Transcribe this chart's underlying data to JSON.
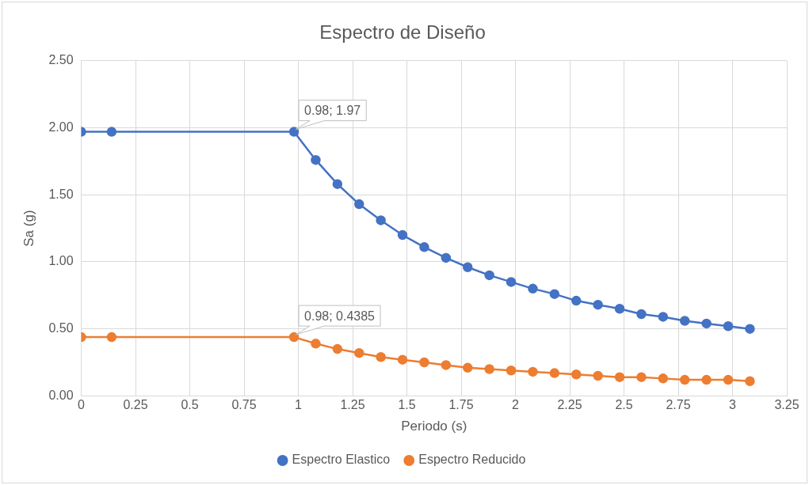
{
  "chart_data": {
    "type": "line",
    "title": "Espectro de Diseño",
    "xlabel": "Periodo (s)",
    "ylabel": "Sa (g)",
    "x": [
      0,
      0.14,
      0.98,
      1.08,
      1.18,
      1.28,
      1.38,
      1.48,
      1.58,
      1.68,
      1.78,
      1.88,
      1.98,
      2.08,
      2.18,
      2.28,
      2.38,
      2.48,
      2.58,
      2.68,
      2.78,
      2.88,
      2.98,
      3.08
    ],
    "series": [
      {
        "name": "Espectro Elastico",
        "color": "#4472c4",
        "values": [
          1.97,
          1.97,
          1.97,
          1.76,
          1.58,
          1.43,
          1.31,
          1.2,
          1.11,
          1.03,
          0.96,
          0.9,
          0.85,
          0.8,
          0.76,
          0.71,
          0.68,
          0.65,
          0.61,
          0.59,
          0.56,
          0.54,
          0.52,
          0.5
        ]
      },
      {
        "name": "Espectro Reducido",
        "color": "#ed7d31",
        "values": [
          0.4385,
          0.4385,
          0.4385,
          0.39,
          0.35,
          0.32,
          0.29,
          0.27,
          0.25,
          0.23,
          0.21,
          0.2,
          0.19,
          0.18,
          0.17,
          0.16,
          0.15,
          0.14,
          0.14,
          0.13,
          0.12,
          0.12,
          0.12,
          0.11
        ]
      }
    ],
    "xlim": [
      0,
      3.25
    ],
    "xticks": [
      0,
      0.25,
      0.5,
      0.75,
      1,
      1.25,
      1.5,
      1.75,
      2,
      2.25,
      2.5,
      2.75,
      3,
      3.25
    ],
    "ylim": [
      0,
      2.5
    ],
    "yticks": [
      {
        "value": 0,
        "label": "0.00"
      },
      {
        "value": 0.5,
        "label": "0.50"
      },
      {
        "value": 1,
        "label": "1.00"
      },
      {
        "value": 1.5,
        "label": "1.50"
      },
      {
        "value": 2,
        "label": "2.00"
      },
      {
        "value": 2.5,
        "label": "2.50"
      }
    ],
    "annotations": [
      {
        "text": "0.98; 1.97",
        "x": 0.98,
        "y": 1.97
      },
      {
        "text": "0.98; 0.4385",
        "x": 0.98,
        "y": 0.4385
      }
    ],
    "grid": true,
    "legend": "bottom",
    "marker": "circle",
    "line_style": "solid"
  }
}
